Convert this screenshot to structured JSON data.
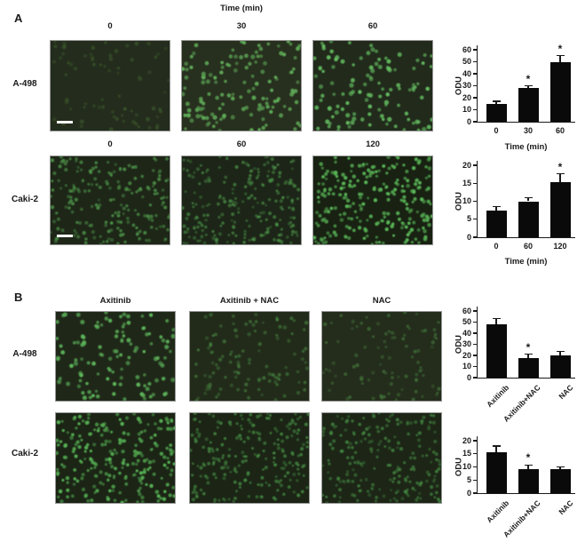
{
  "figure": {
    "panel_a_label": "A",
    "panel_b_label": "B",
    "time_header": "Time (min)"
  },
  "panel_a": {
    "rows": [
      {
        "row_label": "A-498",
        "col_headers": [
          "0",
          "30",
          "60"
        ],
        "micrographs": [
          {
            "label": "A-498 0 min",
            "bg": "#242c1d",
            "dot_color": "#41632f",
            "count": 75,
            "alpha": [
              0.3,
              0.55
            ],
            "radius": [
              1.6,
              2.5
            ],
            "scale_bar": true
          },
          {
            "label": "A-498 30 min",
            "bg": "#272f1e",
            "dot_color": "#61b05a",
            "count": 135,
            "alpha": [
              0.5,
              0.95
            ],
            "radius": [
              1.7,
              2.6
            ],
            "scale_bar": false
          },
          {
            "label": "A-498 60 min",
            "bg": "#212a1b",
            "dot_color": "#63ba5f",
            "count": 115,
            "alpha": [
              0.55,
              1.0
            ],
            "radius": [
              1.7,
              2.7
            ],
            "scale_bar": false
          }
        ]
      },
      {
        "row_label": "Caki-2",
        "col_headers": [
          "0",
          "60",
          "120"
        ],
        "micrographs": [
          {
            "label": "Caki-2 0 min",
            "bg": "#1d2617",
            "dot_color": "#519c4d",
            "count": 200,
            "alpha": [
              0.35,
              0.8
            ],
            "radius": [
              1.5,
              2.2
            ],
            "scale_bar": true
          },
          {
            "label": "Caki-2 60 min",
            "bg": "#1c2517",
            "dot_color": "#4f9b4c",
            "count": 230,
            "alpha": [
              0.3,
              0.7
            ],
            "radius": [
              1.4,
              2.1
            ],
            "scale_bar": false
          },
          {
            "label": "Caki-2 120 min",
            "bg": "#182112",
            "dot_color": "#59b657",
            "count": 245,
            "alpha": [
              0.5,
              1.0
            ],
            "radius": [
              1.5,
              2.3
            ],
            "scale_bar": false
          }
        ]
      }
    ]
  },
  "panel_b": {
    "col_headers": [
      "Axitinib",
      "Axitinib + NAC",
      "NAC"
    ],
    "rows": [
      {
        "row_label": "A-498",
        "micrographs": [
          {
            "label": "A-498 Axitinib",
            "bg": "#1f2818",
            "dot_color": "#5db45b",
            "count": 120,
            "alpha": [
              0.5,
              1.0
            ],
            "radius": [
              1.7,
              2.6
            ],
            "scale_bar": false
          },
          {
            "label": "A-498 Axitinib + NAC",
            "bg": "#222b1a",
            "dot_color": "#4c9145",
            "count": 115,
            "alpha": [
              0.3,
              0.65
            ],
            "radius": [
              1.5,
              2.3
            ],
            "scale_bar": false
          },
          {
            "label": "A-498 NAC",
            "bg": "#242c1c",
            "dot_color": "#48853f",
            "count": 95,
            "alpha": [
              0.25,
              0.6
            ],
            "radius": [
              1.5,
              2.3
            ],
            "scale_bar": false
          }
        ]
      },
      {
        "row_label": "Caki-2",
        "micrographs": [
          {
            "label": "Caki-2 Axitinib",
            "bg": "#1b2415",
            "dot_color": "#56b154",
            "count": 235,
            "alpha": [
              0.45,
              1.0
            ],
            "radius": [
              1.5,
              2.3
            ],
            "scale_bar": false
          },
          {
            "label": "Caki-2 Axitinib + NAC",
            "bg": "#1b2415",
            "dot_color": "#4a9748",
            "count": 225,
            "alpha": [
              0.35,
              0.75
            ],
            "radius": [
              1.4,
              2.1
            ],
            "scale_bar": false
          },
          {
            "label": "Caki-2 NAC",
            "bg": "#1c2516",
            "dot_color": "#4a9748",
            "count": 215,
            "alpha": [
              0.3,
              0.7
            ],
            "radius": [
              1.4,
              2.1
            ],
            "scale_bar": false
          }
        ]
      }
    ]
  },
  "chart_data": [
    {
      "type": "bar",
      "panel": "A",
      "cell_line": "A-498",
      "categories": [
        "0",
        "30",
        "60"
      ],
      "values": [
        15,
        28,
        50
      ],
      "errors": [
        2,
        2,
        5
      ],
      "significance": [
        "",
        "*",
        "*"
      ],
      "title": "",
      "xlabel": "Time (min)",
      "ylabel": "ODU",
      "ylim": [
        0,
        60
      ],
      "yticks": [
        0,
        10,
        20,
        30,
        40,
        50,
        60
      ],
      "grid": false,
      "legend": "none",
      "bar_color": "#0a0a0a"
    },
    {
      "type": "bar",
      "panel": "A",
      "cell_line": "Caki-2",
      "categories": [
        "0",
        "60",
        "120"
      ],
      "values": [
        7.5,
        10,
        15.3
      ],
      "errors": [
        1,
        1,
        2.3
      ],
      "significance": [
        "",
        "",
        "*"
      ],
      "title": "",
      "xlabel": "Time (min)",
      "ylabel": "ODU",
      "ylim": [
        0,
        20
      ],
      "yticks": [
        0,
        5,
        10,
        15,
        20
      ],
      "grid": false,
      "legend": "none",
      "bar_color": "#0a0a0a"
    },
    {
      "type": "bar",
      "panel": "B",
      "cell_line": "A-498",
      "categories": [
        "Axitinib",
        "Axitinib+NAC",
        "NAC"
      ],
      "values": [
        48,
        18,
        20
      ],
      "errors": [
        5,
        3,
        3.5
      ],
      "significance": [
        "",
        "*",
        ""
      ],
      "title": "",
      "xlabel": "",
      "ylabel": "ODU",
      "ylim": [
        0,
        60
      ],
      "yticks": [
        0,
        10,
        20,
        30,
        40,
        50,
        60
      ],
      "grid": false,
      "legend": "none",
      "bar_color": "#0a0a0a",
      "rotated_labels": true
    },
    {
      "type": "bar",
      "panel": "B",
      "cell_line": "Caki-2",
      "categories": [
        "Axitinib",
        "Axitinib+NAC",
        "NAC"
      ],
      "values": [
        15.5,
        9,
        9
      ],
      "errors": [
        2.5,
        1.7,
        1
      ],
      "significance": [
        "",
        "*",
        ""
      ],
      "title": "",
      "xlabel": "",
      "ylabel": "ODU",
      "ylim": [
        0,
        20
      ],
      "yticks": [
        0,
        5,
        10,
        15,
        20
      ],
      "grid": false,
      "legend": "none",
      "bar_color": "#0a0a0a",
      "rotated_labels": true
    }
  ],
  "colors": {
    "bar": "#0a0a0a",
    "axis": "#1a1a1a",
    "text": "#1a1a1a",
    "scale_bar": "#ffffff",
    "background": "#ffffff"
  }
}
